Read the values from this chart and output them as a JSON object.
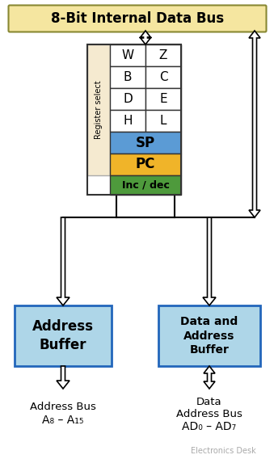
{
  "title": "8-Bit Internal Data Bus",
  "title_bg": "#f5e6a0",
  "title_border": "#888844",
  "title_fontsize": 12,
  "bg_color": "#ffffff",
  "reg_select_bg": "#f5ead0",
  "sp_color": "#5b9bd5",
  "pc_color": "#f0b429",
  "incdec_color": "#4e9a3c",
  "buffer_color": "#aed6e8",
  "buffer_border": "#2266bb",
  "watermark": "Electronics Desk",
  "reg_pairs": [
    [
      "W",
      "Z"
    ],
    [
      "B",
      "C"
    ],
    [
      "D",
      "E"
    ],
    [
      "H",
      "L"
    ]
  ]
}
